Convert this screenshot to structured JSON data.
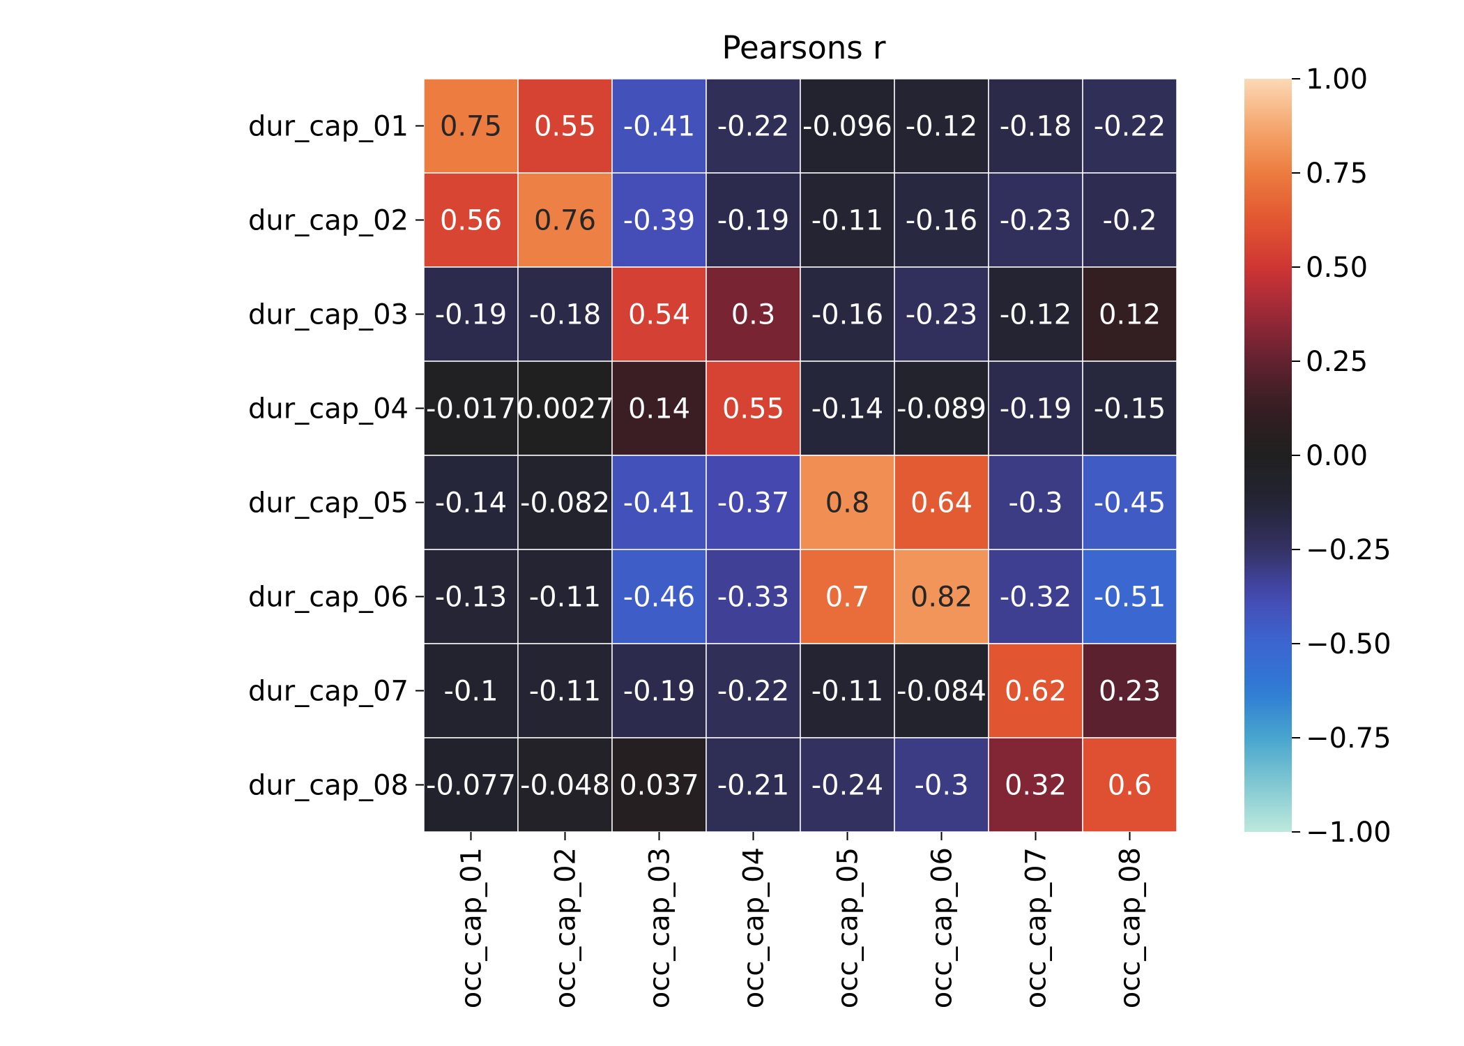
{
  "chart_data": {
    "type": "heatmap",
    "title": "Pearsons r",
    "xlabel": "",
    "ylabel": "",
    "row_labels": [
      "dur_cap_01",
      "dur_cap_02",
      "dur_cap_03",
      "dur_cap_04",
      "dur_cap_05",
      "dur_cap_06",
      "dur_cap_07",
      "dur_cap_08"
    ],
    "col_labels": [
      "occ_cap_01",
      "occ_cap_02",
      "occ_cap_03",
      "occ_cap_04",
      "occ_cap_05",
      "occ_cap_06",
      "occ_cap_07",
      "occ_cap_08"
    ],
    "values": [
      [
        0.75,
        0.55,
        -0.41,
        -0.22,
        -0.096,
        -0.12,
        -0.18,
        -0.22
      ],
      [
        0.56,
        0.76,
        -0.39,
        -0.19,
        -0.11,
        -0.16,
        -0.23,
        -0.2
      ],
      [
        -0.19,
        -0.18,
        0.54,
        0.3,
        -0.16,
        -0.23,
        -0.12,
        0.12
      ],
      [
        -0.017,
        0.0027,
        0.14,
        0.55,
        -0.14,
        -0.089,
        -0.19,
        -0.15
      ],
      [
        -0.14,
        -0.082,
        -0.41,
        -0.37,
        0.8,
        0.64,
        -0.3,
        -0.45
      ],
      [
        -0.13,
        -0.11,
        -0.46,
        -0.33,
        0.7,
        0.82,
        -0.32,
        -0.51
      ],
      [
        -0.1,
        -0.11,
        -0.19,
        -0.22,
        -0.11,
        -0.084,
        0.62,
        0.23
      ],
      [
        -0.077,
        -0.048,
        0.037,
        -0.21,
        -0.24,
        -0.3,
        0.32,
        0.6
      ]
    ],
    "value_labels": [
      [
        "0.75",
        "0.55",
        "-0.41",
        "-0.22",
        "-0.096",
        "-0.12",
        "-0.18",
        "-0.22"
      ],
      [
        "0.56",
        "0.76",
        "-0.39",
        "-0.19",
        "-0.11",
        "-0.16",
        "-0.23",
        "-0.2"
      ],
      [
        "-0.19",
        "-0.18",
        "0.54",
        "0.3",
        "-0.16",
        "-0.23",
        "-0.12",
        "0.12"
      ],
      [
        "-0.017",
        "0.0027",
        "0.14",
        "0.55",
        "-0.14",
        "-0.089",
        "-0.19",
        "-0.15"
      ],
      [
        "-0.14",
        "-0.082",
        "-0.41",
        "-0.37",
        "0.8",
        "0.64",
        "-0.3",
        "-0.45"
      ],
      [
        "-0.13",
        "-0.11",
        "-0.46",
        "-0.33",
        "0.7",
        "0.82",
        "-0.32",
        "-0.51"
      ],
      [
        "-0.1",
        "-0.11",
        "-0.19",
        "-0.22",
        "-0.11",
        "-0.084",
        "0.62",
        "0.23"
      ],
      [
        "-0.077",
        "-0.048",
        "0.037",
        "-0.21",
        "-0.24",
        "-0.3",
        "0.32",
        "0.6"
      ]
    ],
    "vmin": -1.0,
    "vmax": 1.0,
    "colormap": "icefire",
    "colorbar_ticks": [
      1.0,
      0.75,
      0.5,
      0.25,
      0.0,
      -0.25,
      -0.5,
      -0.75,
      -1.0
    ],
    "colorbar_tick_labels": [
      "1.00",
      "0.75",
      "0.50",
      "0.25",
      "0.00",
      "−0.25",
      "−0.50",
      "−0.75",
      "−1.00"
    ],
    "gridlines": "white",
    "legend": "colorbar-right"
  }
}
